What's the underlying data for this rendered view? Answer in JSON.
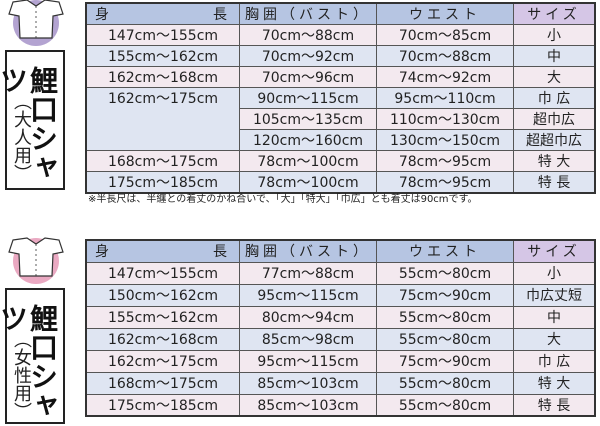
{
  "men": {
    "icon_color": "#b3a3d1",
    "title": "鯉口シャツ",
    "subtitle": "（大人用）",
    "headers": {
      "height_a": "身",
      "height_b": "長",
      "chest": "胸囲（バスト）",
      "waist": "ウエスト",
      "size": "サイズ"
    },
    "rows": [
      {
        "height": "147cm〜155cm",
        "chest": "70cm〜88cm",
        "waist": "70cm〜85cm",
        "size": "小"
      },
      {
        "height": "155cm〜162cm",
        "chest": "70cm〜92cm",
        "waist": "70cm〜88cm",
        "size": "中"
      },
      {
        "height": "162cm〜168cm",
        "chest": "70cm〜96cm",
        "waist": "74cm〜92cm",
        "size": "大"
      },
      {
        "height": "162cm〜175cm",
        "chest": "90cm〜115cm",
        "waist": "95cm〜110cm",
        "size": "巾 広",
        "span": 3
      },
      {
        "chest": "105cm〜135cm",
        "waist": "110cm〜130cm",
        "size": "超巾広"
      },
      {
        "chest": "120cm〜160cm",
        "waist": "130cm〜150cm",
        "size": "超超巾広"
      },
      {
        "height": "168cm〜175cm",
        "chest": "78cm〜100cm",
        "waist": "78cm〜95cm",
        "size": "特 大"
      },
      {
        "height": "175cm〜185cm",
        "chest": "78cm〜100cm",
        "waist": "78cm〜95cm",
        "size": "特 長"
      }
    ],
    "note": "※半長尺は、半纏との着丈のかね合いで、「大」「特大」「巾広」とも着丈は90cmです。"
  },
  "women": {
    "icon_color": "#eaa9c2",
    "title": "鯉口シャツ",
    "subtitle": "（女性用）",
    "headers": {
      "height_a": "身",
      "height_b": "長",
      "chest": "胸囲（バスト）",
      "waist": "ウエスト",
      "size": "サイズ"
    },
    "rows": [
      {
        "height": "147cm〜155cm",
        "chest": "77cm〜88cm",
        "waist": "55cm〜80cm",
        "size": "小"
      },
      {
        "height": "150cm〜162cm",
        "chest": "95cm〜115cm",
        "waist": "75cm〜90cm",
        "size": "巾広丈短"
      },
      {
        "height": "155cm〜162cm",
        "chest": "80cm〜94cm",
        "waist": "55cm〜80cm",
        "size": "中"
      },
      {
        "height": "162cm〜168cm",
        "chest": "85cm〜98cm",
        "waist": "55cm〜80cm",
        "size": "大"
      },
      {
        "height": "162cm〜175cm",
        "chest": "95cm〜115cm",
        "waist": "75cm〜90cm",
        "size": "巾 広"
      },
      {
        "height": "168cm〜175cm",
        "chest": "85cm〜103cm",
        "waist": "55cm〜80cm",
        "size": "特 大"
      },
      {
        "height": "175cm〜185cm",
        "chest": "85cm〜103cm",
        "waist": "55cm〜80cm",
        "size": "特 長"
      }
    ]
  }
}
